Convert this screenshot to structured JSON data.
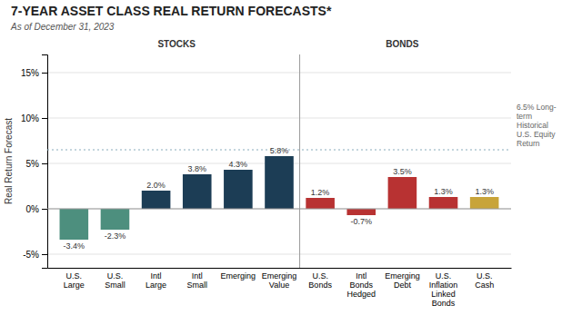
{
  "chart_data": {
    "type": "bar",
    "title": "7-YEAR ASSET CLASS REAL RETURN FORECASTS*",
    "subtitle": "As of December 31, 2023",
    "categories": [
      "U.S.\nLarge",
      "U.S.\nSmall",
      "Intl\nLarge",
      "Intl\nSmall",
      "Emerging",
      "Emerging\nValue",
      "U.S.\nBonds",
      "Intl\nBonds\nHedged",
      "Emerging\nDebt",
      "U.S.\nInflation\nLinked\nBonds",
      "U.S.\nCash"
    ],
    "values": [
      -3.4,
      -2.3,
      2.0,
      3.8,
      4.3,
      5.8,
      1.2,
      -0.7,
      3.5,
      1.3,
      1.3
    ],
    "value_labels": [
      "-3.4%",
      "-2.3%",
      "2.0%",
      "3.8%",
      "4.3%",
      "5.8%",
      "1.2%",
      "-0.7%",
      "3.5%",
      "1.3%",
      "1.3%"
    ],
    "data_labels": true,
    "colors": [
      "#4d8f7e",
      "#4d8f7e",
      "#1c3d55",
      "#1c3d55",
      "#1c3d55",
      "#1c3d55",
      "#b83232",
      "#b83232",
      "#b83232",
      "#b83232",
      "#c8a43a"
    ],
    "sections": [
      {
        "label": "STOCKS",
        "from": "U.S.\nLarge"
      },
      {
        "label": "BONDS",
        "from": "U.S.\nBonds"
      }
    ],
    "ref_line": {
      "value": 6.5,
      "label": "6.5% Long-\nterm\nHistorical\nU.S. Equity\nReturn",
      "color": "#8aabbb"
    },
    "ylabel": "Real Return Forecast",
    "ylim": [
      -6.5,
      17
    ],
    "yticks": [
      {
        "value": -5,
        "label": "-5%"
      },
      {
        "value": 0,
        "label": "0%"
      },
      {
        "value": 5,
        "label": "5%"
      },
      {
        "value": 10,
        "label": "10%"
      },
      {
        "value": 15,
        "label": "15%"
      }
    ],
    "grid": true
  }
}
